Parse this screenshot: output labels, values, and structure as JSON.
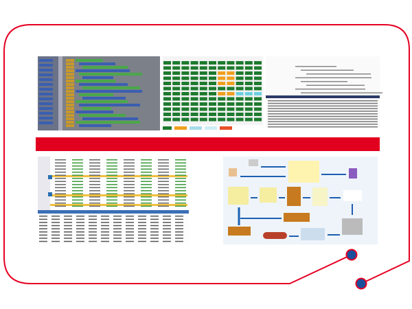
{
  "colors": {
    "frame": "#e60023",
    "band": "#e2001f",
    "dot": "#1a4f9c",
    "block_green": "#1e7a2e",
    "block_orange": "#f0a020",
    "block_cyan": "#6fd0e0",
    "flow_arrow": "#1b5fb0",
    "box_brown": "#c77a1f"
  },
  "panels": [
    {
      "name": "visual-programming-blocks",
      "icon": "code-blocks-icon"
    },
    {
      "name": "status-grid",
      "icon": "grid-icon"
    },
    {
      "name": "code-editor-log",
      "icon": "code-icon"
    },
    {
      "name": "data-table-timeline",
      "icon": "table-icon"
    },
    {
      "name": "warehouse-flowchart",
      "icon": "flowchart-icon"
    }
  ]
}
